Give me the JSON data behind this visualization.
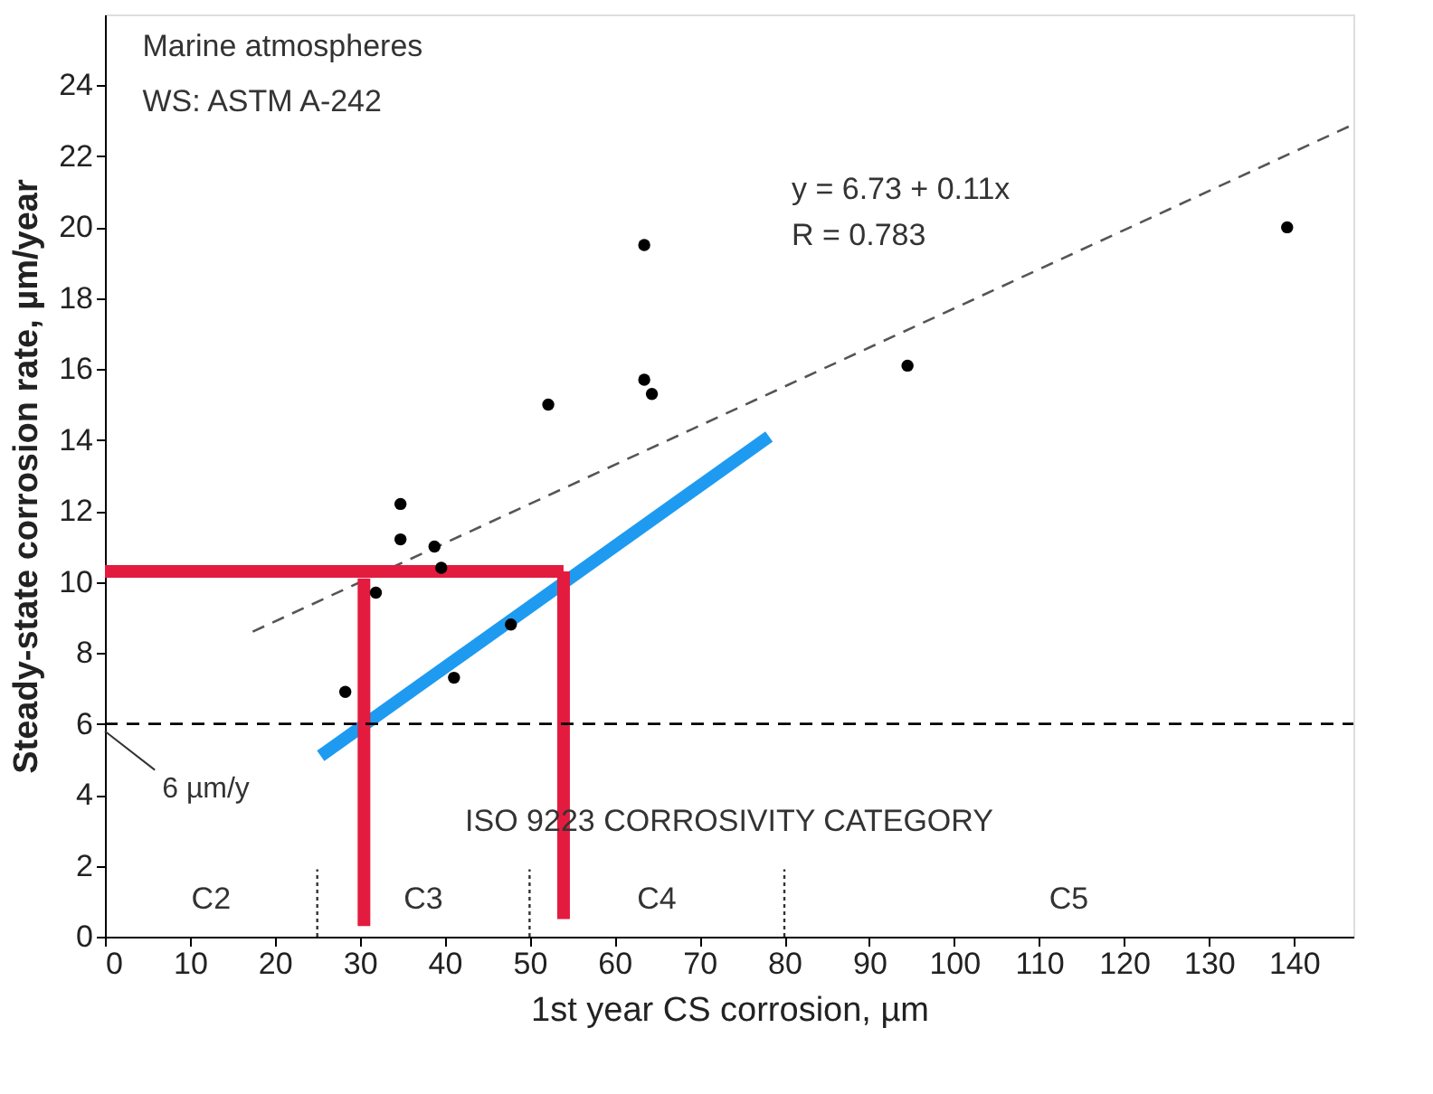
{
  "chart_data": {
    "type": "scatter",
    "xlabel": "1st year CS corrosion, µm",
    "ylabel": "Steady-state corrosion rate, µm/year",
    "xlim": [
      0,
      147
    ],
    "xticks": [
      0,
      10,
      20,
      30,
      40,
      50,
      60,
      70,
      80,
      90,
      100,
      110,
      120,
      130,
      140
    ],
    "ylim": [
      0,
      26
    ],
    "yticks": [
      0,
      2,
      4,
      6,
      8,
      10,
      12,
      14,
      16,
      18,
      20,
      22,
      24
    ],
    "grid": false,
    "series": [
      {
        "marker": "circle",
        "color": "#000000",
        "x": [
          28.3,
          31.9,
          34.8,
          34.8,
          38.8,
          39.6,
          41.1,
          47.8,
          52.2,
          63.5,
          63.5,
          64.4,
          94.5,
          139.2
        ],
        "values": [
          6.9,
          9.7,
          12.2,
          11.2,
          11.0,
          10.4,
          7.3,
          8.8,
          15.0,
          19.5,
          15.7,
          15.3,
          16.1,
          20.0
        ]
      },
      {
        "type": "line",
        "color": "#555555",
        "line_style": "dashed",
        "x": [
          17.4,
          147
        ],
        "values": [
          8.6,
          22.9
        ]
      },
      {
        "type": "line",
        "color": "#1e9bf0",
        "line_style": "solid",
        "x": [
          25.4,
          78.2
        ],
        "values": [
          5.1,
          14.1
        ]
      },
      {
        "type": "line",
        "color": "#e31b3f",
        "line_style": "solid",
        "x": [
          0,
          54
        ],
        "values": [
          10.3,
          10.3
        ]
      },
      {
        "type": "line",
        "color": "#e31b3f",
        "line_style": "solid",
        "x": [
          30.5,
          30.5
        ],
        "values": [
          0.3,
          10.1
        ]
      },
      {
        "type": "line",
        "color": "#e31b3f",
        "line_style": "solid",
        "x": [
          54,
          54
        ],
        "values": [
          0.5,
          10.3
        ]
      },
      {
        "type": "line",
        "color": "#333333",
        "line_style": "dotted",
        "x": [
          25,
          25
        ],
        "values": [
          0,
          1.9
        ]
      },
      {
        "type": "line",
        "color": "#333333",
        "line_style": "dotted",
        "x": [
          50,
          50
        ],
        "values": [
          0,
          1.9
        ]
      },
      {
        "type": "line",
        "color": "#333333",
        "line_style": "dotted",
        "x": [
          80,
          80
        ],
        "values": [
          0,
          1.9
        ]
      }
    ],
    "ref_lines": [
      {
        "axis": "y",
        "value": 6,
        "label": "6 µm/y",
        "color": "#000000",
        "line_style": "dashed"
      }
    ],
    "annotations": [
      "Marine atmospheres",
      "WS: ASTM A-242",
      "y = 6.73 + 0.11x",
      "R = 0.783",
      "ISO 9223 CORROSIVITY CATEGORY",
      "C2",
      "C3",
      "C4",
      "C5"
    ]
  }
}
